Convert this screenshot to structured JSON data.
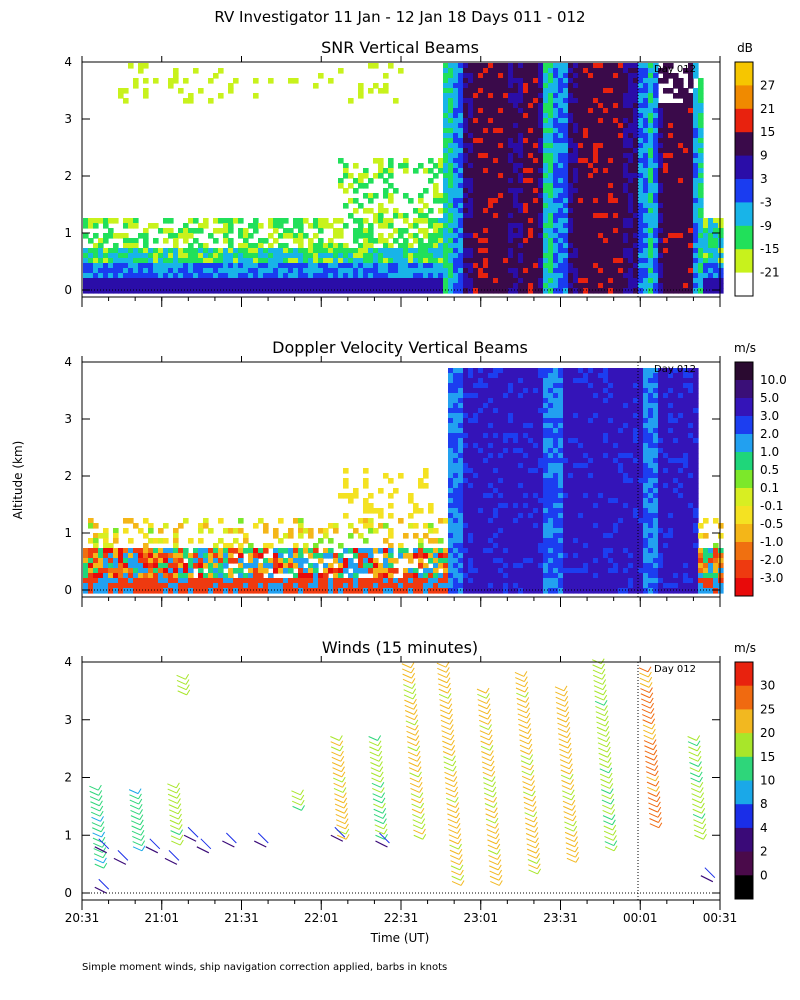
{
  "title": "RV Investigator  11 Jan - 12 Jan 18 Days 011 - 012",
  "y_label": "Altitude (km)",
  "x_label": "Time (UT)",
  "footnote": "Simple moment winds, ship navigation correction applied, barbs in knots",
  "chart_data": [
    {
      "type": "heatmap",
      "title": "SNR Vertical Beams",
      "units": "dB",
      "day_marker": "Day 012",
      "x_ticks": [
        "20:31",
        "21:01",
        "21:31",
        "22:01",
        "22:31",
        "23:01",
        "23:31",
        "00:01",
        "00:31"
      ],
      "y_ticks": [
        "0",
        "1",
        "2",
        "3",
        "4"
      ],
      "ylim": [
        0,
        4
      ],
      "colorbar": {
        "labels": [
          "27",
          "21",
          "15",
          "9",
          "3",
          "-3",
          "-9",
          "-15",
          "-21"
        ],
        "colors": [
          "#f6c600",
          "#f08a00",
          "#e8220e",
          "#3a0a4a",
          "#2a0da8",
          "#1a3cf0",
          "#18b4e8",
          "#21e05a",
          "#c8f21c",
          "#ffffff"
        ]
      }
    },
    {
      "type": "heatmap",
      "title": "Doppler Velocity Vertical Beams",
      "units": "m/s",
      "day_marker": "Day 012",
      "x_ticks": [
        "20:31",
        "21:01",
        "21:31",
        "22:01",
        "22:31",
        "23:01",
        "23:31",
        "00:01",
        "00:31"
      ],
      "y_ticks": [
        "0",
        "1",
        "2",
        "3",
        "4"
      ],
      "ylim": [
        0,
        4
      ],
      "colorbar": {
        "labels": [
          "10.0",
          "5.0",
          "3.0",
          "2.0",
          "1.0",
          "0.5",
          "0.1",
          "-0.1",
          "-0.5",
          "-1.0",
          "-2.0",
          "-3.0"
        ],
        "colors": [
          "#2a0a30",
          "#3a0f78",
          "#3414b8",
          "#1c3ef0",
          "#22a0f0",
          "#1fd67a",
          "#7ce82a",
          "#d8ee22",
          "#f4e222",
          "#f4b618",
          "#f07010",
          "#ee3a10",
          "#e80a0a"
        ]
      }
    },
    {
      "type": "scatter",
      "title": "Winds (15 minutes)",
      "units": "m/s",
      "day_marker": "Day 012",
      "x_ticks": [
        "20:31",
        "21:01",
        "21:31",
        "22:01",
        "22:31",
        "23:01",
        "23:31",
        "00:01",
        "00:31"
      ],
      "y_ticks": [
        "0",
        "1",
        "2",
        "3",
        "4"
      ],
      "ylim": [
        0,
        4
      ],
      "colorbar": {
        "labels": [
          "30",
          "25",
          "20",
          "15",
          "10",
          "8",
          "4",
          "2",
          "0"
        ],
        "colors": [
          "#e8220e",
          "#f06a10",
          "#f2b820",
          "#a8e62a",
          "#2ed67a",
          "#1aa8e8",
          "#1a2ee8",
          "#3a0a78",
          "#4a0a4a",
          "#000000"
        ]
      }
    }
  ]
}
